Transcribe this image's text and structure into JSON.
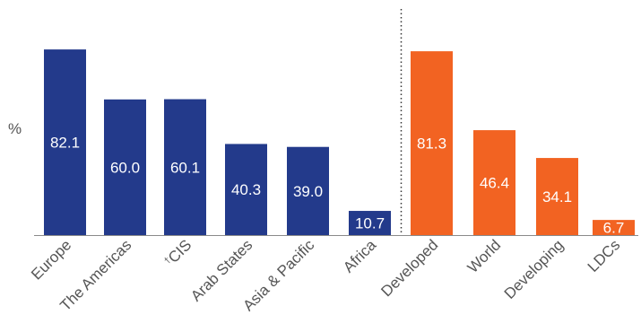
{
  "chart_data": {
    "type": "bar",
    "ylabel": "%",
    "ylim": [
      0,
      90
    ],
    "grid": false,
    "categories": [
      "Europe",
      "The Americas",
      "CIS",
      "Arab States",
      "Asia & Pacific",
      "Africa",
      "Developed",
      "World",
      "Developing",
      "LDCs"
    ],
    "category_marks": [
      "",
      "",
      "†",
      "",
      "",
      "",
      "",
      "",
      "",
      ""
    ],
    "values": [
      82.1,
      60.0,
      60.1,
      40.3,
      39.0,
      10.7,
      81.3,
      46.4,
      34.1,
      6.7
    ],
    "value_labels": [
      "82.1",
      "60.0",
      "60.1",
      "40.3",
      "39.0",
      "10.7",
      "81.3",
      "46.4",
      "34.1",
      "6.7"
    ],
    "groups": [
      {
        "color": "#233a8b",
        "category_indices": [
          0,
          1,
          2,
          3,
          4,
          5
        ]
      },
      {
        "color": "#f26322",
        "category_indices": [
          6,
          7,
          8,
          9
        ]
      }
    ],
    "separator": "dotted vertical line between Africa and Developed"
  }
}
